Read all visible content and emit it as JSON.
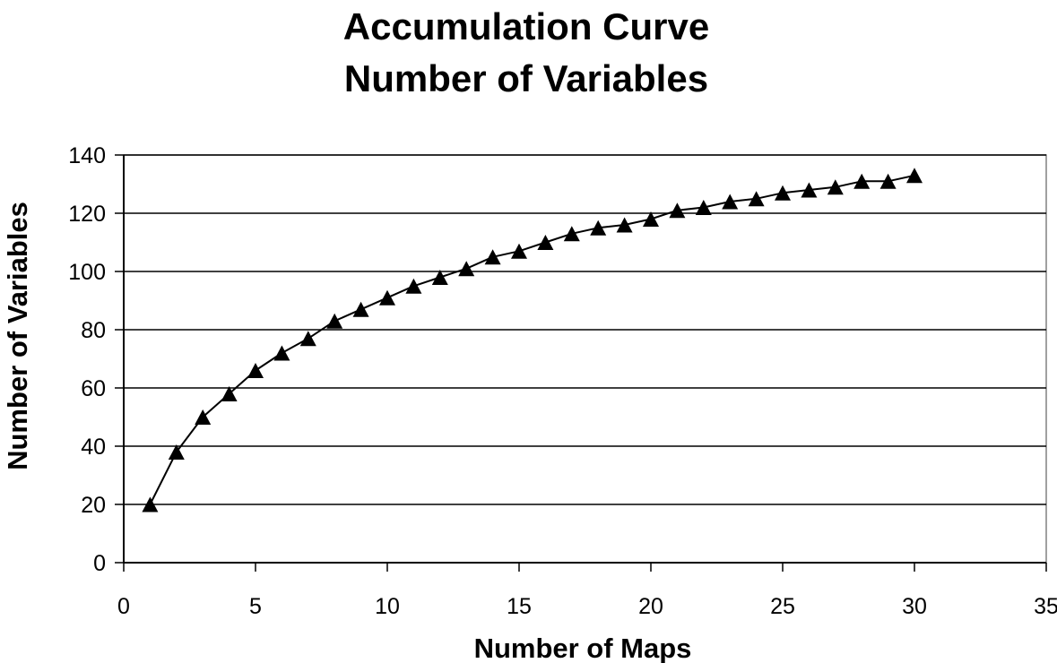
{
  "chart_data": {
    "type": "line",
    "title": [
      "Accumulation Curve",
      "Number of Variables"
    ],
    "xlabel": "Number of Maps",
    "ylabel": "Number of Variables",
    "xlim": [
      0,
      35
    ],
    "ylim": [
      0,
      140
    ],
    "xticks": [
      0,
      5,
      10,
      15,
      20,
      25,
      30,
      35
    ],
    "yticks": [
      0,
      20,
      40,
      60,
      80,
      100,
      120,
      140
    ],
    "grid": "horizontal",
    "legend": "none",
    "marker": "triangle",
    "line_color": "#000000",
    "series": [
      {
        "x": [
          1,
          2,
          3,
          4,
          5,
          6,
          7,
          8,
          9,
          10,
          11,
          12,
          13,
          14,
          15,
          16,
          17,
          18,
          19,
          20,
          21,
          22,
          23,
          24,
          25,
          26,
          27,
          28,
          29,
          30
        ],
        "values": [
          20,
          38,
          50,
          58,
          66,
          72,
          77,
          83,
          87,
          91,
          95,
          98,
          101,
          105,
          107,
          110,
          113,
          115,
          116,
          118,
          121,
          122,
          124,
          125,
          127,
          128,
          129,
          131,
          131,
          133
        ]
      }
    ]
  }
}
